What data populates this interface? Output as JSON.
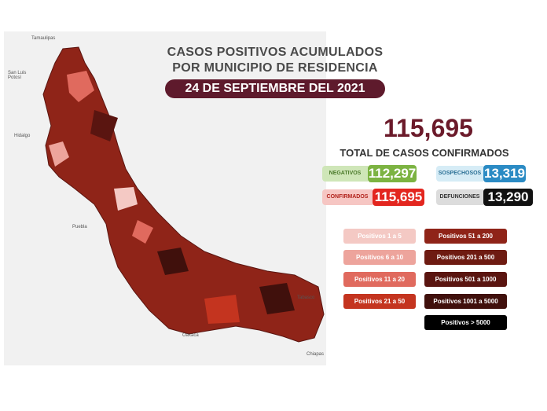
{
  "header": {
    "title_lines": [
      "CASOS POSITIVOS ACUMULADOS",
      "POR MUNICIPIO DE RESIDENCIA"
    ],
    "date": "24 DE SEPTIEMBRE DEL 2021"
  },
  "summary": {
    "total": "115,695",
    "total_label": "TOTAL DE CASOS CONFIRMADOS",
    "stats": [
      {
        "label": "NEGATIVOS",
        "value": "112,297"
      },
      {
        "label": "SOSPECHOSOS",
        "value": "13,319"
      },
      {
        "label": "CONFIRMADOS",
        "value": "115,695"
      },
      {
        "label": "DEFUNCIONES",
        "value": "13,290"
      }
    ]
  },
  "legend": [
    "Positivos 1 a 5",
    "Positivos 6 a 10",
    "Positivos 11 a 20",
    "Positivos 21 a 50",
    "Positivos 51 a 200",
    "Positivos 201 a 500",
    "Positivos 501 a 1000",
    "Positivos 1001 a 5000",
    "Positivos > 5000"
  ],
  "map": {
    "labels": [
      "Tamaulipas",
      "San Luis Potosí",
      "Hidalgo",
      "Puebla",
      "Oaxaca",
      "Tabasco",
      "Chiapas"
    ]
  }
}
